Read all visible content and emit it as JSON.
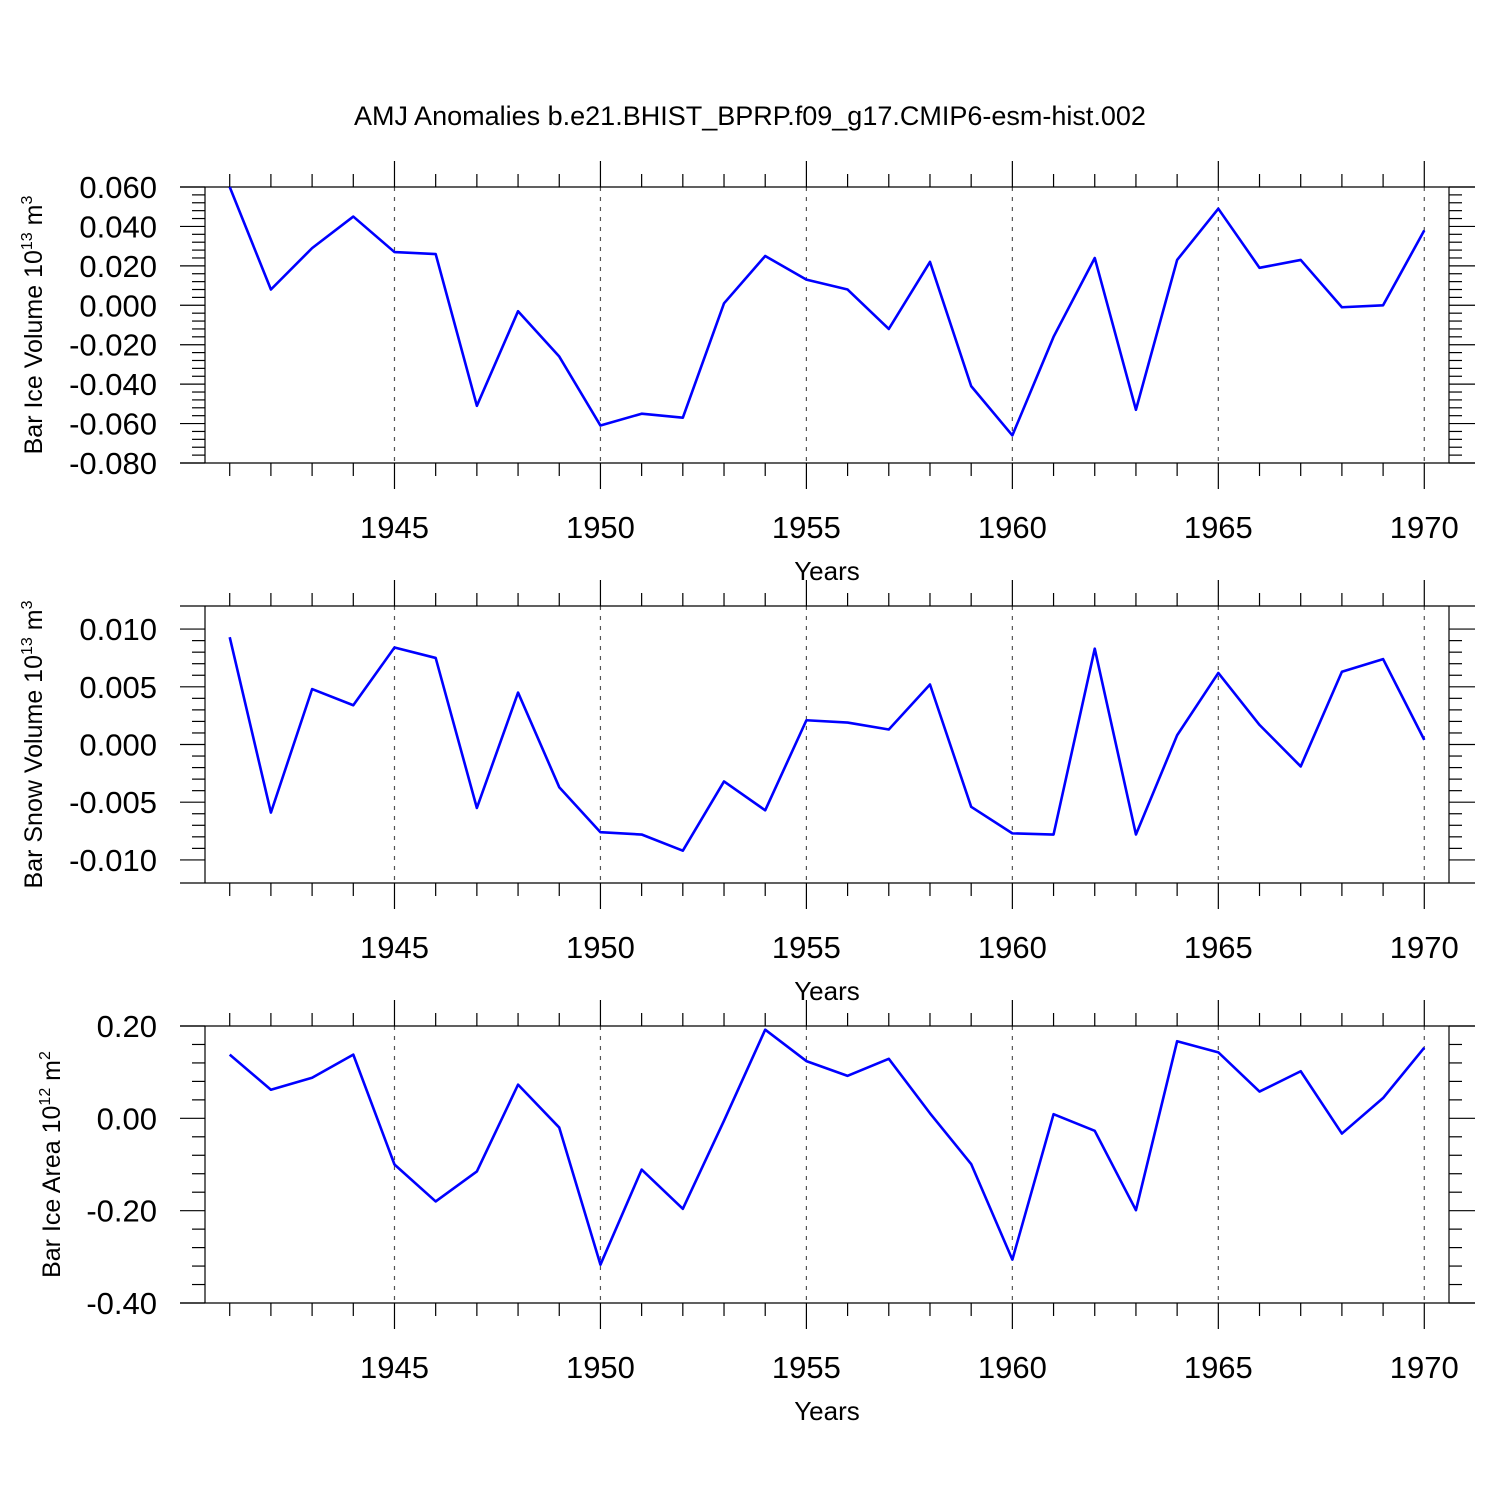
{
  "title": "AMJ Anomalies b.e21.BHIST_BPRP.f09_g17.CMIP6-esm-hist.002",
  "colors": {
    "line": "#0000ff",
    "axis": "#000000",
    "grid": "#555555"
  },
  "chart_data": [
    {
      "type": "line",
      "ylabel": "Bar Ice Volume 10",
      "ylabel_exp": "13",
      "ylabel_unit": " m",
      "ylabel_unit_exp": "3",
      "xlabel": "Years",
      "xlim": [
        1940.4,
        1970.6
      ],
      "ylim": [
        -0.08,
        0.06
      ],
      "yticks": [
        0.06,
        0.04,
        0.02,
        0.0,
        -0.02,
        -0.04,
        -0.06,
        -0.08
      ],
      "ytick_labels": [
        "0.060",
        "0.040",
        "0.020",
        "0.000",
        "-0.020",
        "-0.040",
        "-0.060",
        "-0.080"
      ],
      "xticks": [
        1945,
        1950,
        1955,
        1960,
        1965,
        1970
      ],
      "xtick_labels": [
        "1945",
        "1950",
        "1955",
        "1960",
        "1965",
        "1970"
      ],
      "x": [
        1941,
        1942,
        1943,
        1944,
        1945,
        1946,
        1947,
        1948,
        1949,
        1950,
        1951,
        1952,
        1953,
        1954,
        1955,
        1956,
        1957,
        1958,
        1959,
        1960,
        1961,
        1962,
        1963,
        1964,
        1965,
        1966,
        1967,
        1968,
        1969,
        1970
      ],
      "series": [
        {
          "name": "Bar Ice Volume",
          "values": [
            0.06,
            0.008,
            0.029,
            0.045,
            0.027,
            0.026,
            -0.051,
            -0.003,
            -0.026,
            -0.061,
            -0.055,
            -0.057,
            0.001,
            0.025,
            0.013,
            0.008,
            -0.012,
            0.022,
            -0.041,
            -0.066,
            -0.016,
            0.024,
            -0.053,
            0.023,
            0.049,
            0.019,
            0.023,
            -0.001,
            0.0,
            0.038
          ]
        }
      ]
    },
    {
      "type": "line",
      "ylabel": "Bar Snow Volume 10",
      "ylabel_exp": "13",
      "ylabel_unit": " m",
      "ylabel_unit_exp": "3",
      "xlabel": "Years",
      "xlim": [
        1940.4,
        1970.6
      ],
      "ylim": [
        -0.012,
        0.012
      ],
      "yticks": [
        0.01,
        0.005,
        0.0,
        -0.005,
        -0.01
      ],
      "ytick_labels": [
        "0.010",
        "0.005",
        "0.000",
        "-0.005",
        "-0.010"
      ],
      "xticks": [
        1945,
        1950,
        1955,
        1960,
        1965,
        1970
      ],
      "xtick_labels": [
        "1945",
        "1950",
        "1955",
        "1960",
        "1965",
        "1970"
      ],
      "x": [
        1941,
        1942,
        1943,
        1944,
        1945,
        1946,
        1947,
        1948,
        1949,
        1950,
        1951,
        1952,
        1953,
        1954,
        1955,
        1956,
        1957,
        1958,
        1959,
        1960,
        1961,
        1962,
        1963,
        1964,
        1965,
        1966,
        1967,
        1968,
        1969,
        1970
      ],
      "series": [
        {
          "name": "Bar Snow Volume",
          "values": [
            0.0093,
            -0.0059,
            0.0048,
            0.0034,
            0.0084,
            0.0075,
            -0.0055,
            0.0045,
            -0.0037,
            -0.0076,
            -0.0078,
            -0.0092,
            -0.0032,
            -0.0057,
            0.0021,
            0.0019,
            0.0013,
            0.0052,
            -0.0054,
            -0.0077,
            -0.0078,
            0.0083,
            -0.0078,
            0.0008,
            0.0062,
            0.0017,
            -0.0019,
            0.0063,
            0.0074,
            0.0004
          ]
        }
      ]
    },
    {
      "type": "line",
      "ylabel": "Bar Ice Area 10",
      "ylabel_exp": "12",
      "ylabel_unit": " m",
      "ylabel_unit_exp": "2",
      "xlabel": "Years",
      "xlim": [
        1940.4,
        1970.6
      ],
      "ylim": [
        -0.4,
        0.2
      ],
      "yticks": [
        0.2,
        0.0,
        -0.2,
        -0.4
      ],
      "ytick_labels": [
        "0.20",
        "0.00",
        "-0.20",
        "-0.40"
      ],
      "xticks": [
        1945,
        1950,
        1955,
        1960,
        1965,
        1970
      ],
      "xtick_labels": [
        "1945",
        "1950",
        "1955",
        "1960",
        "1965",
        "1970"
      ],
      "x": [
        1941,
        1942,
        1943,
        1944,
        1945,
        1946,
        1947,
        1948,
        1949,
        1950,
        1951,
        1952,
        1953,
        1954,
        1955,
        1956,
        1957,
        1958,
        1959,
        1960,
        1961,
        1962,
        1963,
        1964,
        1965,
        1966,
        1967,
        1968,
        1969,
        1970
      ],
      "series": [
        {
          "name": "Bar Ice Area",
          "values": [
            0.138,
            0.062,
            0.088,
            0.138,
            -0.1,
            -0.18,
            -0.115,
            0.073,
            -0.02,
            -0.317,
            -0.111,
            -0.196,
            -0.005,
            0.192,
            0.124,
            0.092,
            0.129,
            0.011,
            -0.099,
            -0.306,
            0.009,
            -0.027,
            -0.199,
            0.167,
            0.143,
            0.058,
            0.102,
            -0.033,
            0.044,
            0.153
          ]
        }
      ]
    }
  ]
}
